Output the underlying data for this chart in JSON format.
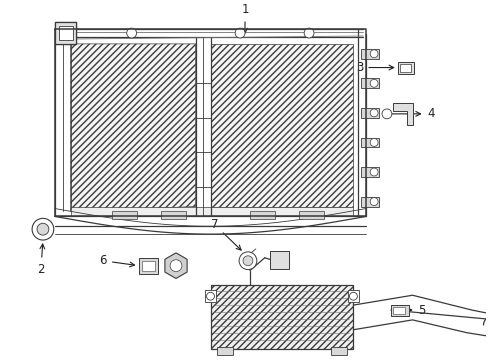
{
  "bg_color": "#ffffff",
  "lc": "#3a3a3a",
  "lc_light": "#707070",
  "lc_mid": "#555555",
  "figsize": [
    4.9,
    3.6
  ],
  "dpi": 100,
  "label_fs": 8.5,
  "label_color": "#222222"
}
